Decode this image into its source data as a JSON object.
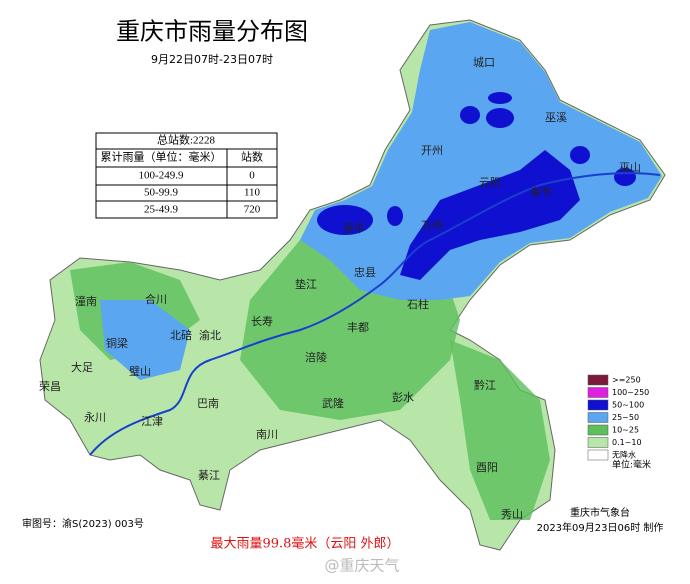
{
  "header": {
    "title": "重庆市雨量分布图",
    "subtitle": "9月22日07时-23日07时"
  },
  "table": {
    "total": "总站数:2228",
    "columns": [
      "累计雨量（单位：毫米）",
      "站数"
    ],
    "rows": [
      [
        "100-249.9",
        "0"
      ],
      [
        "50-99.9",
        "110"
      ],
      [
        "25-49.9",
        "720"
      ]
    ]
  },
  "legend": {
    "items": [
      {
        "label": ">=250",
        "color": "#7b1a3a"
      },
      {
        "label": "100~250",
        "color": "#e020e0"
      },
      {
        "label": "50~100",
        "color": "#1010d0"
      },
      {
        "label": "25~50",
        "color": "#5aa6f0"
      },
      {
        "label": "10~25",
        "color": "#5cbf5c"
      },
      {
        "label": "0.1~10",
        "color": "#b8e6a8"
      },
      {
        "label": "无降水",
        "color": "#ffffff"
      }
    ],
    "unit": "单位:毫米"
  },
  "places": [
    "城口",
    "巫溪",
    "开州",
    "云阳",
    "奉节",
    "巫山",
    "万州",
    "梁平",
    "忠县",
    "垫江",
    "石柱",
    "长寿",
    "丰都",
    "潼南",
    "合川",
    "北碚",
    "渝北",
    "铜梁",
    "大足",
    "璧山",
    "荣昌",
    "永川",
    "江津",
    "巴南",
    "南川",
    "涪陵",
    "武隆",
    "彭水",
    "黔江",
    "酉阳",
    "秀山",
    "綦江"
  ],
  "footer": {
    "map_number": "审图号：渝S(2023) 003号",
    "max_rain": "最大雨量99.8毫米（云阳 外郎）",
    "issuer": "重庆市气象台",
    "made": "2023年09月23日06时 制作",
    "watermark": "@重庆天气"
  }
}
